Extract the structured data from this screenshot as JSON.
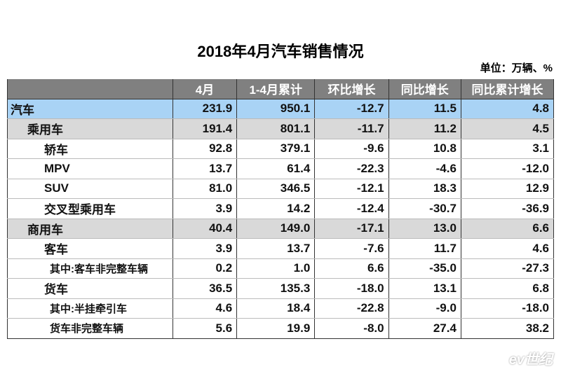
{
  "title": "2018年4月汽车销售情况",
  "unit": "单位：万辆、%",
  "table": {
    "header": [
      "",
      "4月",
      "1-4月累计",
      "环比增长",
      "同比增长",
      "同比累计增长"
    ],
    "rows": [
      [
        "汽车",
        "231.9",
        "950.1",
        "-12.7",
        "11.5",
        "4.8"
      ],
      [
        "乘用车",
        "191.4",
        "801.1",
        "-11.7",
        "11.2",
        "4.5"
      ],
      [
        "轿车",
        "92.8",
        "379.1",
        "-9.6",
        "10.8",
        "3.1"
      ],
      [
        "MPV",
        "13.7",
        "61.4",
        "-22.3",
        "-4.6",
        "-12.0"
      ],
      [
        "SUV",
        "81.0",
        "346.5",
        "-12.1",
        "18.3",
        "12.9"
      ],
      [
        "交叉型乘用车",
        "3.9",
        "14.2",
        "-12.4",
        "-30.7",
        "-36.9"
      ],
      [
        "商用车",
        "40.4",
        "149.0",
        "-17.1",
        "13.0",
        "6.6"
      ],
      [
        "客车",
        "3.9",
        "13.7",
        "-7.6",
        "11.7",
        "4.6"
      ],
      [
        "其中:客车非完整车辆",
        "0.2",
        "1.0",
        "6.6",
        "-35.0",
        "-27.3"
      ],
      [
        "货车",
        "36.5",
        "135.3",
        "-18.0",
        "13.1",
        "6.8"
      ],
      [
        "其中:半挂牵引车",
        "4.6",
        "18.4",
        "-22.8",
        "-9.0",
        "-18.0"
      ],
      [
        "货车非完整车辆",
        "5.6",
        "19.9",
        "-8.0",
        "27.4",
        "38.2"
      ]
    ]
  },
  "watermark": "ev世纪"
}
